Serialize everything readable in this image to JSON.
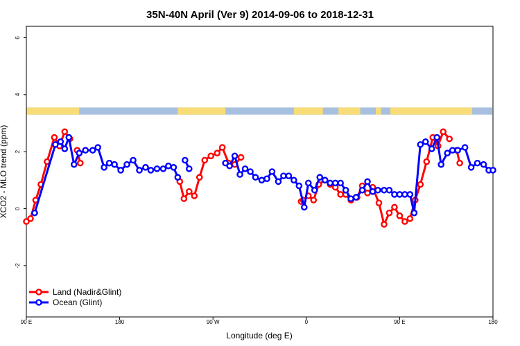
{
  "chart_data": {
    "type": "line",
    "title": "35N-40N April (Ver 9)   2014-09-06 to 2018-12-31",
    "xlabel": "Longitude (deg E)",
    "ylabel": "XCO2 - MLO trend (ppm)",
    "xlim": [
      90,
      540
    ],
    "ylim": [
      -3.8,
      6.4
    ],
    "x_ticks": [
      {
        "value": 90,
        "label": "90 E"
      },
      {
        "value": 180,
        "label": "180"
      },
      {
        "value": 270,
        "label": "90 W"
      },
      {
        "value": 360,
        "label": "0"
      },
      {
        "value": 450,
        "label": "90 E"
      },
      {
        "value": 540,
        "label": "180"
      }
    ],
    "y_ticks": [
      {
        "value": -2,
        "label": "-2"
      },
      {
        "value": 0,
        "label": "0"
      },
      {
        "value": 2,
        "label": "2"
      },
      {
        "value": 4,
        "label": "4"
      },
      {
        "value": 6,
        "label": "6"
      }
    ],
    "landmask": {
      "y_range": [
        3.3,
        3.55
      ],
      "ocean_color": "#a8c0e0",
      "land_color": "#f8dc78",
      "land_segments": [
        [
          90,
          141
        ],
        [
          236,
          282
        ],
        [
          348,
          376
        ],
        [
          391,
          412
        ],
        [
          427,
          432
        ],
        [
          441,
          520
        ]
      ]
    },
    "legend": {
      "position": "bottom-left"
    },
    "series": [
      {
        "name": "Land (Nadir&Glint)",
        "color": "#ff0000",
        "segments": [
          {
            "x": [
              90,
              94,
              99,
              104,
              110,
              117,
              122,
              127,
              132
            ],
            "y": [
              -0.45,
              -0.35,
              0.3,
              0.85,
              1.65,
              2.5,
              2.2,
              2.7,
              2.45
            ]
          },
          {
            "x": [
              139,
              142
            ],
            "y": [
              2.05,
              1.6
            ]
          },
          {
            "x": [
              238,
              242,
              247,
              252,
              257,
              262,
              268,
              274,
              279,
              285,
              291,
              297
            ],
            "y": [
              0.95,
              0.35,
              0.6,
              0.45,
              1.1,
              1.7,
              1.85,
              1.95,
              2.15,
              1.6,
              1.55,
              1.8
            ]
          },
          {
            "x": [
              355,
              357,
              362,
              367,
              372,
              378,
              383,
              388,
              393,
              398,
              403,
              409,
              414,
              419,
              424,
              430,
              435,
              440,
              445,
              450,
              455,
              460,
              465,
              470,
              476,
              482,
              487,
              492,
              498
            ],
            "y": [
              0.25,
              0.3,
              0.45,
              0.3,
              0.85,
              1.0,
              0.85,
              0.75,
              0.5,
              0.5,
              0.3,
              0.4,
              0.8,
              0.55,
              0.75,
              0.2,
              -0.55,
              -0.15,
              0.05,
              -0.25,
              -0.45,
              -0.35,
              0.3,
              0.85,
              1.65,
              2.5,
              2.2,
              2.7,
              2.45
            ]
          },
          {
            "x": [
              505,
              508
            ],
            "y": [
              2.05,
              1.6
            ]
          }
        ]
      },
      {
        "name": "Ocean (Glint)",
        "color": "#0000ff",
        "segments": [
          {
            "x": [
              98,
              118,
              123,
              127,
              131,
              136,
              141,
              147,
              154,
              159,
              165,
              170,
              175,
              181,
              187,
              193,
              199,
              205,
              210,
              216,
              222,
              227,
              232,
              236
            ],
            "y": [
              -0.15,
              2.25,
              2.35,
              2.1,
              2.5,
              1.55,
              1.95,
              2.05,
              2.05,
              2.15,
              1.45,
              1.6,
              1.55,
              1.35,
              1.55,
              1.7,
              1.35,
              1.45,
              1.35,
              1.4,
              1.4,
              1.5,
              1.45,
              1.1
            ]
          },
          {
            "x": [
              243,
              247
            ],
            "y": [
              1.7,
              1.4
            ]
          },
          {
            "x": [
              282,
              286,
              291,
              296,
              301,
              306,
              311,
              317,
              322,
              327,
              333,
              338,
              343,
              348,
              353,
              358,
              362,
              368,
              373,
              378,
              383,
              388,
              393,
              398,
              403,
              408,
              414,
              419,
              424,
              429,
              435,
              440,
              445,
              450,
              455,
              460,
              464,
              470,
              475,
              481,
              486,
              490,
              496,
              501,
              506,
              513,
              519,
              525,
              531,
              536,
              540
            ],
            "y": [
              1.6,
              1.5,
              1.85,
              1.2,
              1.4,
              1.3,
              1.1,
              1.0,
              1.05,
              1.3,
              0.95,
              1.15,
              1.15,
              1.0,
              0.8,
              0.05,
              0.9,
              0.65,
              1.1,
              1.0,
              0.9,
              0.9,
              0.9,
              0.65,
              0.35,
              0.4,
              0.65,
              0.95,
              0.6,
              0.65,
              0.65,
              0.65,
              0.5,
              0.5,
              0.5,
              0.5,
              -0.15,
              2.25,
              2.35,
              2.1,
              2.5,
              1.55,
              1.95,
              2.05,
              2.05,
              2.15,
              1.45,
              1.6,
              1.55,
              1.35,
              1.35
            ]
          }
        ]
      }
    ]
  }
}
